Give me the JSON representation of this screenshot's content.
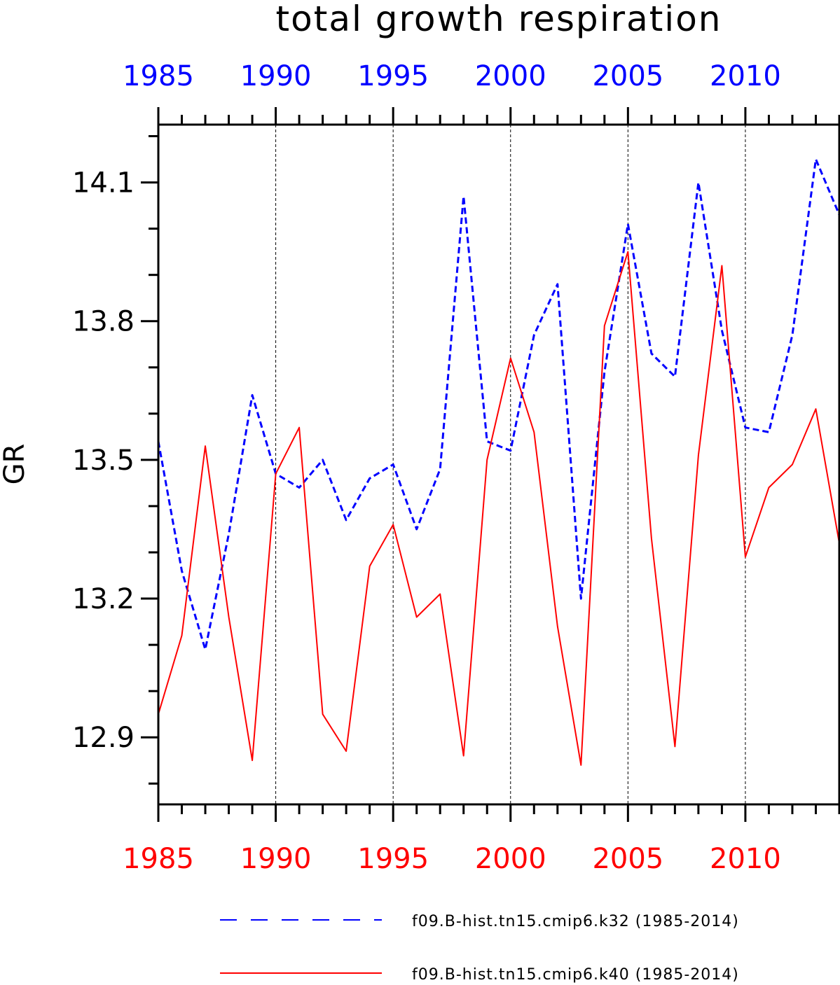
{
  "chart_data": {
    "type": "line",
    "title": "total growth respiration",
    "ylabel": "GR",
    "xlabel": "",
    "x": [
      1985,
      1986,
      1987,
      1988,
      1989,
      1990,
      1991,
      1992,
      1993,
      1994,
      1995,
      1996,
      1997,
      1998,
      1999,
      2000,
      2001,
      2002,
      2003,
      2004,
      2005,
      2006,
      2007,
      2008,
      2009,
      2010,
      2011,
      2012,
      2013,
      2014
    ],
    "xlim": [
      1985,
      2014
    ],
    "ylim": [
      12.755,
      14.225
    ],
    "x_ticks_top": [
      "1985",
      "1990",
      "1995",
      "2000",
      "2005",
      "2010"
    ],
    "x_ticks_bottom": [
      "1985",
      "1990",
      "1995",
      "2000",
      "2005",
      "2010"
    ],
    "x_tick_values": [
      1985,
      1990,
      1995,
      2000,
      2005,
      2010
    ],
    "y_ticks": [
      "12.9",
      "13.2",
      "13.5",
      "13.8",
      "14.1"
    ],
    "y_tick_values": [
      12.9,
      13.2,
      13.5,
      13.8,
      14.1
    ],
    "y_minor_step": 0.1,
    "grid": "vertical dashed lines at major x ticks",
    "top_axis_color": "#0000ff",
    "bottom_axis_color": "#ff0000",
    "series": [
      {
        "name": "f09.B-hist.tn15.cmip6.k32 (1985-2014)",
        "color": "#0000ff",
        "style": "dashed",
        "values": [
          13.54,
          13.26,
          13.09,
          13.34,
          13.64,
          13.47,
          13.44,
          13.5,
          13.37,
          13.46,
          13.49,
          13.35,
          13.48,
          14.07,
          13.54,
          13.52,
          13.77,
          13.88,
          13.2,
          13.69,
          14.01,
          13.73,
          13.68,
          14.1,
          13.78,
          13.57,
          13.56,
          13.77,
          14.15,
          14.03
        ]
      },
      {
        "name": "f09.B-hist.tn15.cmip6.k40 (1985-2014)",
        "color": "#ff0000",
        "style": "solid",
        "values": [
          12.95,
          13.12,
          13.53,
          13.16,
          12.85,
          13.47,
          13.57,
          12.95,
          12.87,
          13.27,
          13.36,
          13.16,
          13.21,
          12.86,
          13.5,
          13.72,
          13.56,
          13.14,
          12.84,
          13.79,
          13.95,
          13.33,
          12.88,
          13.51,
          13.92,
          13.29,
          13.44,
          13.49,
          13.61,
          13.32
        ]
      }
    ],
    "legend": "bottom"
  }
}
